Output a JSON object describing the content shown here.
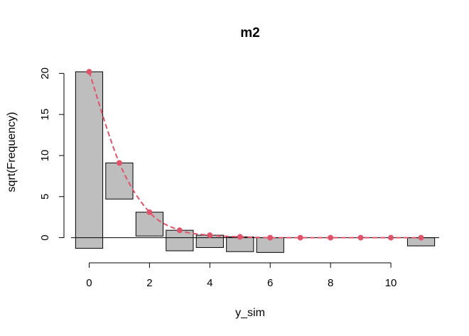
{
  "chart_data": {
    "type": "bar",
    "subtype": "hanging-rootogram",
    "title": "m2",
    "xlabel": "y_sim",
    "ylabel": "sqrt(Frequency)",
    "xlim": [
      -0.6,
      11.6
    ],
    "ylim": [
      -2.2,
      21.5
    ],
    "x_ticks": [
      0,
      2,
      4,
      6,
      8,
      10
    ],
    "y_ticks": [
      0,
      5,
      10,
      15,
      20
    ],
    "grid": false,
    "bar_color": "#bebebe",
    "line_color": "#df536b",
    "x": [
      0,
      1,
      2,
      3,
      4,
      5,
      6,
      7,
      8,
      9,
      10,
      11
    ],
    "bars": [
      {
        "x": 0,
        "top": 20.2,
        "bottom": -1.3
      },
      {
        "x": 1,
        "top": 9.1,
        "bottom": 4.7
      },
      {
        "x": 2,
        "top": 3.1,
        "bottom": 0.2
      },
      {
        "x": 3,
        "top": 0.9,
        "bottom": -1.6
      },
      {
        "x": 4,
        "top": 0.3,
        "bottom": -1.2
      },
      {
        "x": 5,
        "top": 0.1,
        "bottom": -1.7
      },
      {
        "x": 6,
        "top": 0.0,
        "bottom": -1.8
      },
      {
        "x": 11,
        "top": 0.0,
        "bottom": -1.0
      }
    ],
    "expected": [
      20.2,
      9.1,
      3.1,
      0.9,
      0.3,
      0.1,
      0.0,
      0.0,
      0.0,
      0.0,
      0.0,
      0.0
    ]
  }
}
